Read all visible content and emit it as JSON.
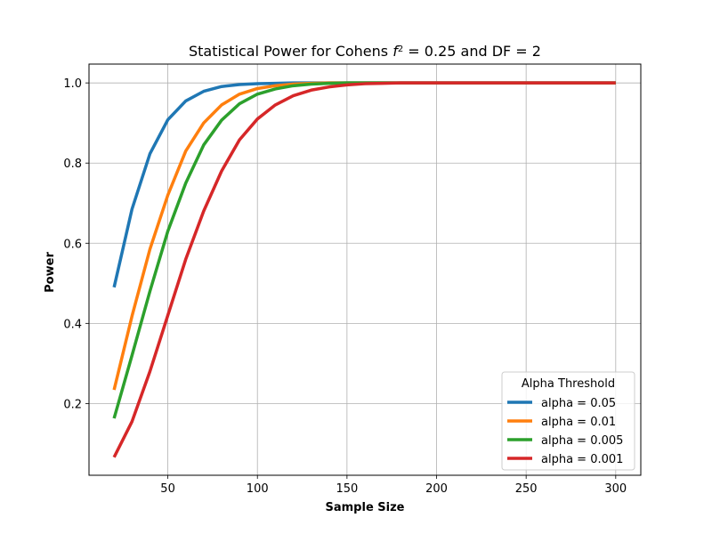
{
  "chart_data": {
    "type": "line",
    "title": "Statistical Power for Cohens",
    "title_symbol": "f",
    "title_superscript": "2",
    "title_suffix": " = 0.25 and DF = 2",
    "xlabel": "Sample Size",
    "ylabel": "Power",
    "xlim": [
      6,
      314
    ],
    "ylim": [
      0.021,
      1.047
    ],
    "xticks": [
      50,
      100,
      150,
      200,
      250,
      300
    ],
    "xtick_labels": [
      "50",
      "100",
      "150",
      "200",
      "250",
      "300"
    ],
    "yticks": [
      0.2,
      0.4,
      0.6,
      0.8,
      1.0
    ],
    "ytick_labels": [
      "0.2",
      "0.4",
      "0.6",
      "0.8",
      "1.0"
    ],
    "grid": true,
    "legend": {
      "title": "Alpha Threshold",
      "position": "lower-right"
    },
    "x": [
      20,
      30,
      40,
      50,
      60,
      70,
      80,
      90,
      100,
      110,
      120,
      130,
      140,
      150,
      160,
      170,
      180,
      190,
      200,
      210,
      220,
      230,
      240,
      250,
      260,
      270,
      280,
      290,
      300
    ],
    "series": [
      {
        "name": "alpha = 0.05",
        "color": "#1f77b4",
        "values": [
          0.49,
          0.685,
          0.823,
          0.908,
          0.955,
          0.979,
          0.991,
          0.996,
          0.998,
          0.999,
          1.0,
          1.0,
          1.0,
          1.0,
          1.0,
          1.0,
          1.0,
          1.0,
          1.0,
          1.0,
          1.0,
          1.0,
          1.0,
          1.0,
          1.0,
          1.0,
          1.0,
          1.0,
          1.0
        ]
      },
      {
        "name": "alpha = 0.01",
        "color": "#ff7f0e",
        "values": [
          0.234,
          0.418,
          0.585,
          0.72,
          0.83,
          0.9,
          0.945,
          0.972,
          0.986,
          0.993,
          0.997,
          0.999,
          1.0,
          1.0,
          1.0,
          1.0,
          1.0,
          1.0,
          1.0,
          1.0,
          1.0,
          1.0,
          1.0,
          1.0,
          1.0,
          1.0,
          1.0,
          1.0,
          1.0
        ]
      },
      {
        "name": "alpha = 0.005",
        "color": "#2ca02c",
        "values": [
          0.163,
          0.32,
          0.48,
          0.63,
          0.75,
          0.845,
          0.907,
          0.948,
          0.972,
          0.985,
          0.993,
          0.997,
          0.999,
          1.0,
          1.0,
          1.0,
          1.0,
          1.0,
          1.0,
          1.0,
          1.0,
          1.0,
          1.0,
          1.0,
          1.0,
          1.0,
          1.0,
          1.0,
          1.0
        ]
      },
      {
        "name": "alpha = 0.001",
        "color": "#d62728",
        "values": [
          0.066,
          0.155,
          0.28,
          0.42,
          0.56,
          0.68,
          0.78,
          0.858,
          0.91,
          0.945,
          0.968,
          0.982,
          0.99,
          0.995,
          0.998,
          0.999,
          1.0,
          1.0,
          1.0,
          1.0,
          1.0,
          1.0,
          1.0,
          1.0,
          1.0,
          1.0,
          1.0,
          1.0,
          1.0
        ]
      }
    ]
  }
}
